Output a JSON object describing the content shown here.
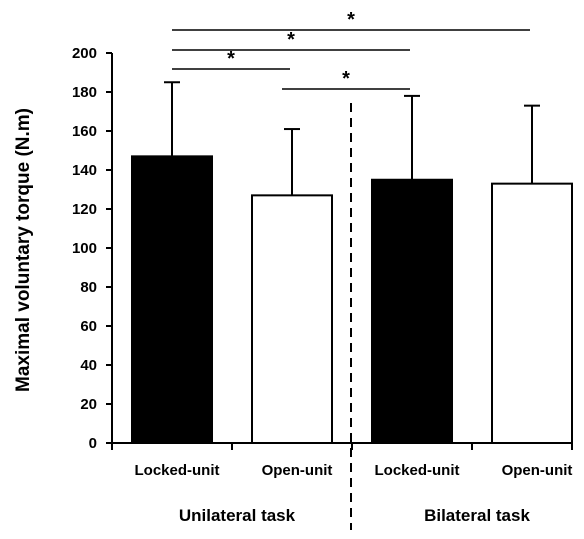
{
  "chart_data": {
    "type": "bar",
    "ylabel": "Maximal voluntary torque (N.m)",
    "ylim": [
      0,
      200
    ],
    "yticks": [
      0,
      20,
      40,
      60,
      80,
      100,
      120,
      140,
      160,
      180,
      200
    ],
    "categories": [
      "Locked-unit",
      "Open-unit",
      "Locked-unit",
      "Open-unit"
    ],
    "groups": [
      {
        "label": "Unilateral task",
        "bar_indices": [
          0,
          1
        ]
      },
      {
        "label": "Bilateral task",
        "bar_indices": [
          2,
          3
        ]
      }
    ],
    "values": [
      147,
      127,
      135,
      133
    ],
    "error_upper": [
      185,
      161,
      178,
      173
    ],
    "bar_fill": [
      "#000000",
      "#ffffff",
      "#000000",
      "#ffffff"
    ],
    "separator": "dashed vertical line between task groups",
    "grid": false,
    "significance": [
      {
        "from": 0,
        "to": 3,
        "label": "*"
      },
      {
        "from": 0,
        "to": 2,
        "label": "*"
      },
      {
        "from": 0,
        "to": 1,
        "label": "*"
      },
      {
        "from": 1,
        "to": 2,
        "label": "*"
      }
    ]
  }
}
